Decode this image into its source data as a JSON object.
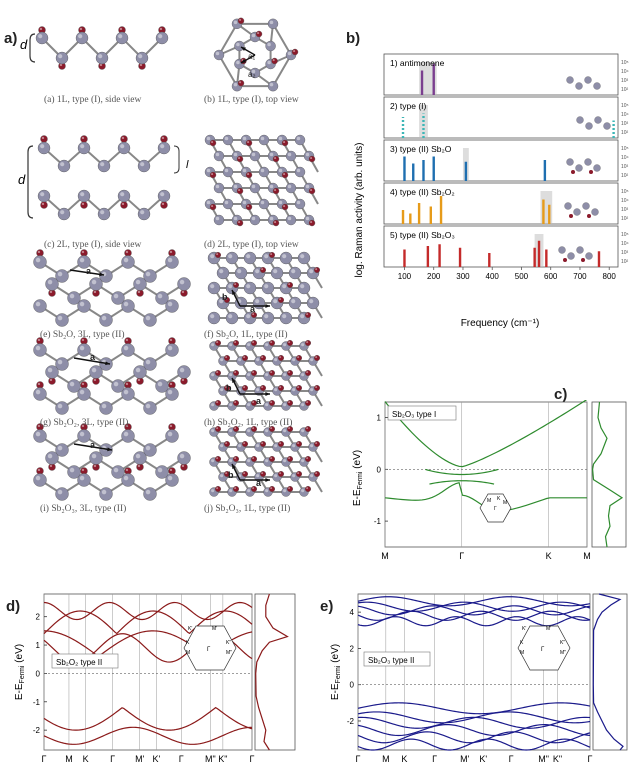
{
  "panel_a": {
    "letter": "a)",
    "side_label_d": "d",
    "side_label_l": "l",
    "structures": [
      {
        "caption": "(a) 1L, type (I), side view"
      },
      {
        "caption": "(b) 1L, type (I), top view",
        "vec1": "a₁",
        "vec2": "a₂"
      },
      {
        "caption": "(c) 2L, type (I), side view"
      },
      {
        "caption": "(d) 2L, type (I), top view"
      },
      {
        "caption": "(e) Sb₂O, 3L, type (II)",
        "vec": "a"
      },
      {
        "caption": "(f) Sb₂O, 1L, type (II)",
        "vec1": "a",
        "vec2": "b"
      },
      {
        "caption": "(g) Sb₂O₂, 3L, type (II)",
        "vec": "a"
      },
      {
        "caption": "(h) Sb₂O₂, 1L, type (II)",
        "vec1": "a",
        "vec2": "b"
      },
      {
        "caption": "(i) Sb₂O₃, 3L, type (II)",
        "vec": "a"
      },
      {
        "caption": "(j) Sb₂O₃, 1L, type (II)",
        "vec1": "a",
        "vec2": "b"
      }
    ],
    "colors": {
      "sb": "#8e8ea8",
      "o": "#8b1a2b"
    }
  },
  "panel_b": {
    "letter": "b)",
    "ylabel": "log. Raman activity (arb. units)",
    "xlabel": "Frequency (cm⁻¹)",
    "xticks": [
      "100",
      "200",
      "300",
      "400",
      "500",
      "600",
      "700",
      "800"
    ],
    "right_ticks": [
      "10⁵",
      "10⁴",
      "10³",
      "10²"
    ],
    "subplots": [
      {
        "label": "1)  antimonene",
        "color": "#7b3f8f",
        "peaks": [
          {
            "x": 160,
            "h": 0.7
          },
          {
            "x": 200,
            "h": 0.9
          }
        ],
        "highlight": [
          150,
          210
        ]
      },
      {
        "label": "2)  type (I)",
        "color": "#3cb6b6",
        "dashed": true,
        "peaks": [
          {
            "x": 95,
            "h": 0.6
          },
          {
            "x": 165,
            "h": 0.7
          },
          {
            "x": 815,
            "h": 0.5
          }
        ],
        "highlight": [
          150,
          180
        ]
      },
      {
        "label": "3)  type (II) Sb₂O",
        "color": "#1f6fb0",
        "peaks": [
          {
            "x": 100,
            "h": 0.7
          },
          {
            "x": 130,
            "h": 0.5
          },
          {
            "x": 165,
            "h": 0.6
          },
          {
            "x": 200,
            "h": 0.7
          },
          {
            "x": 310,
            "h": 0.55
          },
          {
            "x": 580,
            "h": 0.6
          }
        ],
        "highlight": [
          300,
          320
        ]
      },
      {
        "label": "4)  type (II) Sb₂O₂",
        "color": "#e69b1a",
        "peaks": [
          {
            "x": 95,
            "h": 0.4
          },
          {
            "x": 120,
            "h": 0.3
          },
          {
            "x": 150,
            "h": 0.6
          },
          {
            "x": 190,
            "h": 0.5
          },
          {
            "x": 225,
            "h": 0.8
          },
          {
            "x": 575,
            "h": 0.7
          },
          {
            "x": 595,
            "h": 0.55
          }
        ],
        "highlight": [
          565,
          605
        ]
      },
      {
        "label": "5)  type (II) Sb₂O₃",
        "color": "#c42a2a",
        "peaks": [
          {
            "x": 100,
            "h": 0.5
          },
          {
            "x": 180,
            "h": 0.6
          },
          {
            "x": 220,
            "h": 0.65
          },
          {
            "x": 290,
            "h": 0.55
          },
          {
            "x": 390,
            "h": 0.4
          },
          {
            "x": 545,
            "h": 0.55
          },
          {
            "x": 560,
            "h": 0.75
          },
          {
            "x": 585,
            "h": 0.5
          },
          {
            "x": 765,
            "h": 0.45
          }
        ],
        "highlight": [
          545,
          575
        ]
      }
    ]
  },
  "panel_c": {
    "letter": "c)",
    "label": "Sb₂O₃ type I",
    "ylabel": "E-E",
    "ylabel_sub": "Fermi",
    "ylabel_unit": " (eV)",
    "yticks": [
      "1",
      "0",
      "-1"
    ],
    "xticks": [
      "M",
      "Γ",
      "K",
      "M"
    ],
    "bz_labels": {
      "m": "M",
      "k": "K",
      "gamma": "Γ",
      "m2": "M"
    },
    "color": "#2e8b2e"
  },
  "panel_d": {
    "letter": "d)",
    "label": "Sb₂O₂ type II",
    "ylabel": "E-E",
    "ylabel_sub": "Fermi",
    "ylabel_unit": " (eV)",
    "yticks": [
      "2",
      "1",
      "0",
      "-1",
      "-2"
    ],
    "xticks": [
      "Γ",
      "M",
      "K",
      "Γ",
      "M'",
      "K'",
      "Γ",
      "M\"",
      "K\"",
      "Γ"
    ],
    "bz_labels": [
      "K'",
      "M'",
      "K",
      "M",
      "Γ",
      "K\"",
      "M\""
    ],
    "color": "#8b1a1a"
  },
  "panel_e": {
    "letter": "e)",
    "label": "Sb₂O₃ type II",
    "ylabel": "E-E",
    "ylabel_sub": "Fermi",
    "ylabel_unit": " (eV)",
    "yticks": [
      "4",
      "2",
      "0",
      "-2"
    ],
    "xticks": [
      "Γ",
      "M",
      "K",
      "Γ",
      "M'",
      "K'",
      "Γ",
      "M\"",
      "K\"",
      "Γ"
    ],
    "bz_labels": [
      "K'",
      "M'",
      "K",
      "M",
      "Γ",
      "K\"",
      "M\""
    ],
    "color": "#1a1a8b"
  }
}
